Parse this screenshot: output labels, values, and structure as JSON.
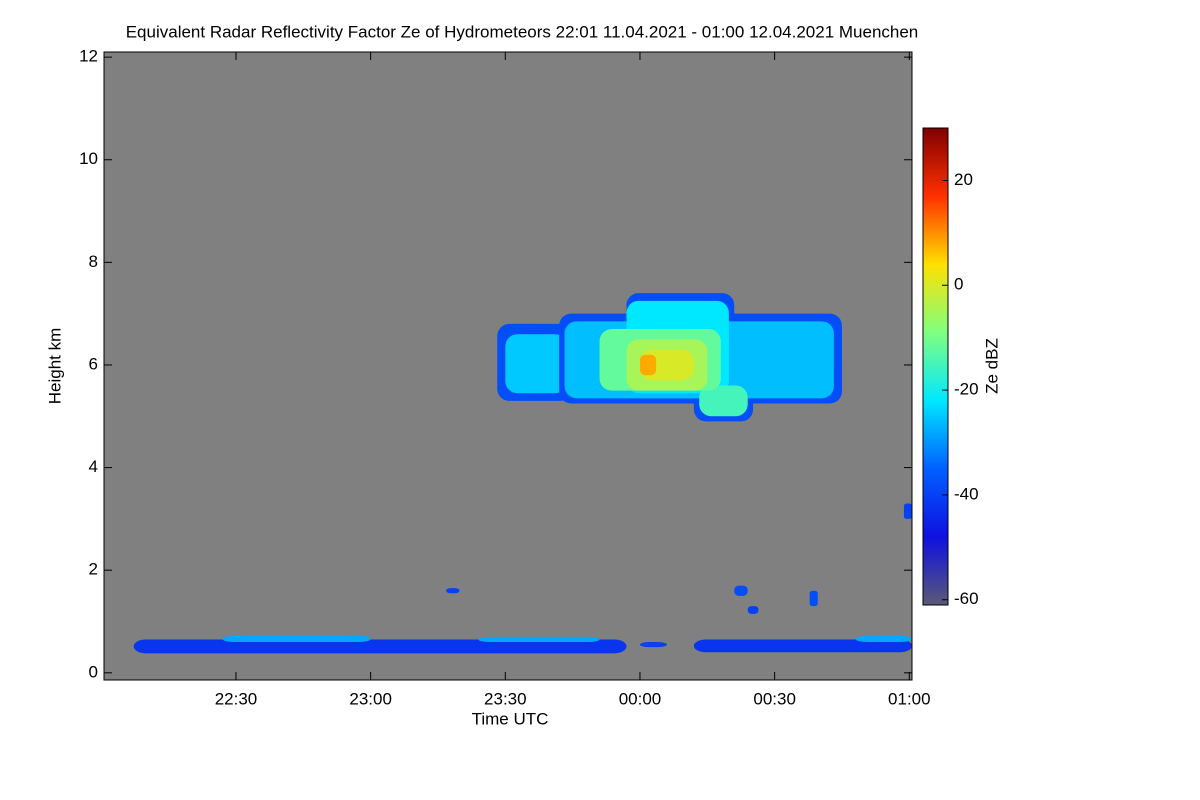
{
  "chart_data": {
    "type": "heatmap",
    "title": "Equivalent Radar Reflectivity Factor Ze of Hydrometeors   22:01 11.04.2021 - 01:00 12.04.2021 Muenchen",
    "x_label": "Time UTC",
    "y_label": "Height km",
    "colorbar_label": "Ze dBZ",
    "xlim": [
      22.01,
      25.01
    ],
    "xticks": [
      {
        "value": 22.5,
        "label": "22:30"
      },
      {
        "value": 23.0,
        "label": "23:00"
      },
      {
        "value": 23.5,
        "label": "23:30"
      },
      {
        "value": 24.0,
        "label": "00:00"
      },
      {
        "value": 24.5,
        "label": "00:30"
      },
      {
        "value": 25.0,
        "label": "01:00"
      }
    ],
    "ylim": [
      -0.14,
      12.1
    ],
    "yticks": [
      0,
      2,
      4,
      6,
      8,
      10,
      12
    ],
    "clim": [
      -61,
      30
    ],
    "cticks": [
      -60,
      -40,
      -20,
      0,
      20
    ],
    "background": "#808080",
    "colormap": [
      "#5a5a78",
      "#1010e0",
      "#0060ff",
      "#00e8ff",
      "#80ff80",
      "#ffe000",
      "#ff3000",
      "#800000"
    ],
    "cells": [
      [
        23.47,
        23.75,
        5.3,
        6.8,
        -38
      ],
      [
        23.5,
        23.73,
        5.45,
        6.6,
        -25
      ],
      [
        23.7,
        24.75,
        5.25,
        7.0,
        -38
      ],
      [
        23.95,
        24.35,
        5.5,
        7.4,
        -38
      ],
      [
        24.2,
        24.42,
        4.9,
        5.6,
        -38
      ],
      [
        24.55,
        24.75,
        5.8,
        6.9,
        -38
      ],
      [
        23.72,
        24.72,
        5.35,
        6.85,
        -26
      ],
      [
        23.95,
        24.33,
        5.45,
        7.25,
        -22
      ],
      [
        24.22,
        24.4,
        5.0,
        5.6,
        -15
      ],
      [
        23.85,
        24.3,
        5.5,
        6.7,
        -12
      ],
      [
        23.95,
        24.25,
        5.5,
        6.5,
        -5
      ],
      [
        24.0,
        24.2,
        5.7,
        6.3,
        0
      ],
      [
        24.0,
        24.06,
        5.8,
        6.2,
        8
      ],
      [
        22.12,
        23.95,
        0.38,
        0.65,
        -42
      ],
      [
        22.45,
        23.0,
        0.6,
        0.72,
        -28
      ],
      [
        23.4,
        23.85,
        0.6,
        0.7,
        -28
      ],
      [
        24.2,
        25.01,
        0.4,
        0.65,
        -42
      ],
      [
        24.8,
        25.01,
        0.6,
        0.72,
        -28
      ],
      [
        24.0,
        24.1,
        0.5,
        0.6,
        -40
      ],
      [
        23.28,
        23.33,
        1.55,
        1.65,
        -40
      ],
      [
        24.35,
        24.4,
        1.5,
        1.7,
        -38
      ],
      [
        24.63,
        24.66,
        1.3,
        1.6,
        -38
      ],
      [
        24.98,
        25.01,
        3.0,
        3.3,
        -40
      ],
      [
        24.4,
        24.44,
        1.15,
        1.3,
        -40
      ]
    ]
  }
}
